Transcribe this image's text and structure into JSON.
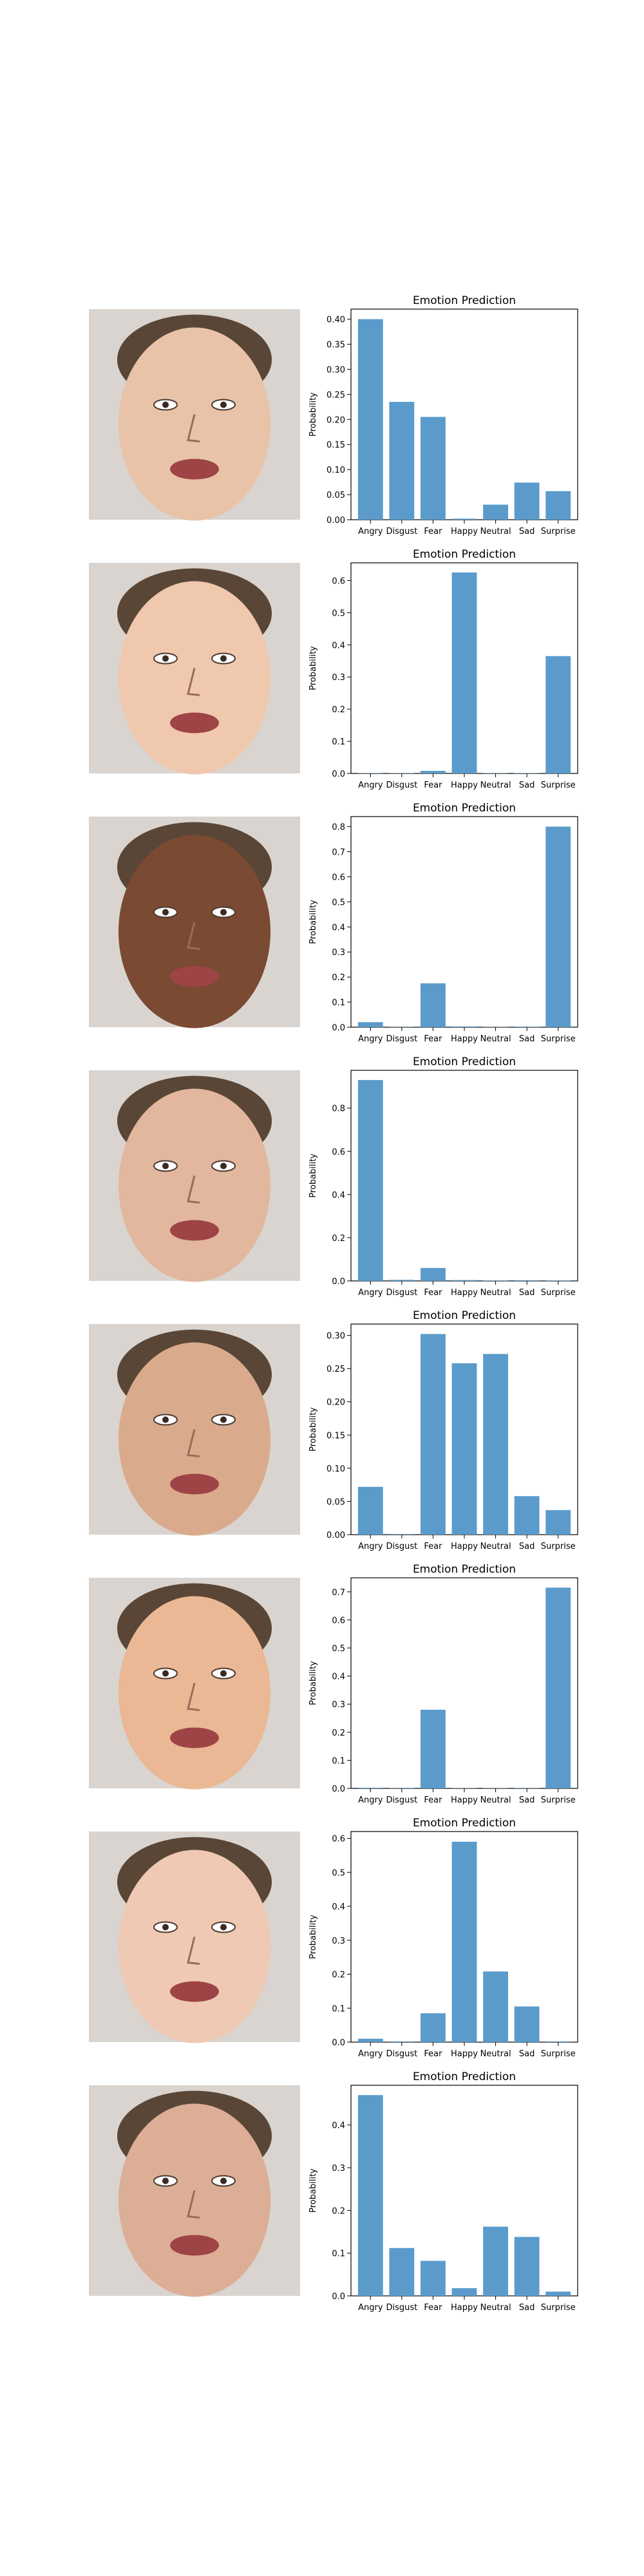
{
  "chart_data": [
    {
      "type": "bar",
      "title": "Emotion Prediction",
      "ylabel": "Probability",
      "categories": [
        "Angry",
        "Disgust",
        "Fear",
        "Happy",
        "Neutral",
        "Sad",
        "Surprise"
      ],
      "values": [
        0.4,
        0.235,
        0.205,
        0.002,
        0.03,
        0.074,
        0.057
      ],
      "ylim": [
        0,
        0.42
      ],
      "yticks": [
        0.0,
        0.05,
        0.1,
        0.15,
        0.2,
        0.25,
        0.3,
        0.35,
        0.4
      ],
      "yticklabels": [
        "0.00",
        "0.05",
        "0.10",
        "0.15",
        "0.20",
        "0.25",
        "0.30",
        "0.35",
        "0.40"
      ],
      "bar_color": "#5b9bcb",
      "face_tone": "#e8c3a8"
    },
    {
      "type": "bar",
      "title": "Emotion Prediction",
      "ylabel": "Probability",
      "categories": [
        "Angry",
        "Disgust",
        "Fear",
        "Happy",
        "Neutral",
        "Sad",
        "Surprise"
      ],
      "values": [
        0.001,
        0.001,
        0.008,
        0.625,
        0.001,
        0.001,
        0.365
      ],
      "ylim": [
        0,
        0.655
      ],
      "yticks": [
        0.0,
        0.1,
        0.2,
        0.3,
        0.4,
        0.5,
        0.6
      ],
      "yticklabels": [
        "0.0",
        "0.1",
        "0.2",
        "0.3",
        "0.4",
        "0.5",
        "0.6"
      ],
      "bar_color": "#5b9bcb",
      "face_tone": "#f0c8ae"
    },
    {
      "type": "bar",
      "title": "Emotion Prediction",
      "ylabel": "Probability",
      "categories": [
        "Angry",
        "Disgust",
        "Fear",
        "Happy",
        "Neutral",
        "Sad",
        "Surprise"
      ],
      "values": [
        0.02,
        0.001,
        0.175,
        0.003,
        0.001,
        0.002,
        0.8
      ],
      "ylim": [
        0,
        0.84
      ],
      "yticks": [
        0.0,
        0.1,
        0.2,
        0.3,
        0.4,
        0.5,
        0.6,
        0.7,
        0.8
      ],
      "yticklabels": [
        "0.0",
        "0.1",
        "0.2",
        "0.3",
        "0.4",
        "0.5",
        "0.6",
        "0.7",
        "0.8"
      ],
      "bar_color": "#5b9bcb",
      "face_tone": "#7a4a32"
    },
    {
      "type": "bar",
      "title": "Emotion Prediction",
      "ylabel": "Probability",
      "categories": [
        "Angry",
        "Disgust",
        "Fear",
        "Happy",
        "Neutral",
        "Sad",
        "Surprise"
      ],
      "values": [
        0.93,
        0.005,
        0.06,
        0.004,
        0.002,
        0.003,
        0.002
      ],
      "ylim": [
        0,
        0.975
      ],
      "yticks": [
        0.0,
        0.2,
        0.4,
        0.6,
        0.8
      ],
      "yticklabels": [
        "0.0",
        "0.2",
        "0.4",
        "0.6",
        "0.8"
      ],
      "bar_color": "#5b9bcb",
      "face_tone": "#e2b79e"
    },
    {
      "type": "bar",
      "title": "Emotion Prediction",
      "ylabel": "Probability",
      "categories": [
        "Angry",
        "Disgust",
        "Fear",
        "Happy",
        "Neutral",
        "Sad",
        "Surprise"
      ],
      "values": [
        0.072,
        0.001,
        0.302,
        0.258,
        0.272,
        0.058,
        0.037
      ],
      "ylim": [
        0,
        0.317
      ],
      "yticks": [
        0.0,
        0.05,
        0.1,
        0.15,
        0.2,
        0.25,
        0.3
      ],
      "yticklabels": [
        "0.00",
        "0.05",
        "0.10",
        "0.15",
        "0.20",
        "0.25",
        "0.30"
      ],
      "bar_color": "#5b9bcb",
      "face_tone": "#d9ab8c"
    },
    {
      "type": "bar",
      "title": "Emotion Prediction",
      "ylabel": "Probability",
      "categories": [
        "Angry",
        "Disgust",
        "Fear",
        "Happy",
        "Neutral",
        "Sad",
        "Surprise"
      ],
      "values": [
        0.002,
        0.001,
        0.28,
        0.001,
        0.001,
        0.001,
        0.715
      ],
      "ylim": [
        0,
        0.75
      ],
      "yticks": [
        0.0,
        0.1,
        0.2,
        0.3,
        0.4,
        0.5,
        0.6,
        0.7
      ],
      "yticklabels": [
        "0.0",
        "0.1",
        "0.2",
        "0.3",
        "0.4",
        "0.5",
        "0.6",
        "0.7"
      ],
      "bar_color": "#5b9bcb",
      "face_tone": "#eab894"
    },
    {
      "type": "bar",
      "title": "Emotion Prediction",
      "ylabel": "Probability",
      "categories": [
        "Angry",
        "Disgust",
        "Fear",
        "Happy",
        "Neutral",
        "Sad",
        "Surprise"
      ],
      "values": [
        0.01,
        0.002,
        0.085,
        0.59,
        0.208,
        0.105,
        0.002
      ],
      "ylim": [
        0,
        0.62
      ],
      "yticks": [
        0.0,
        0.1,
        0.2,
        0.3,
        0.4,
        0.5,
        0.6
      ],
      "yticklabels": [
        "0.0",
        "0.1",
        "0.2",
        "0.3",
        "0.4",
        "0.5",
        "0.6"
      ],
      "bar_color": "#5b9bcb",
      "face_tone": "#efc9b3"
    },
    {
      "type": "bar",
      "title": "Emotion Prediction",
      "ylabel": "Probability",
      "categories": [
        "Angry",
        "Disgust",
        "Fear",
        "Happy",
        "Neutral",
        "Sad",
        "Surprise"
      ],
      "values": [
        0.47,
        0.112,
        0.082,
        0.018,
        0.162,
        0.138,
        0.01
      ],
      "ylim": [
        0,
        0.493
      ],
      "yticks": [
        0.0,
        0.1,
        0.2,
        0.3,
        0.4
      ],
      "yticklabels": [
        "0.0",
        "0.1",
        "0.2",
        "0.3",
        "0.4"
      ],
      "bar_color": "#5b9bcb",
      "face_tone": "#dcae96"
    }
  ]
}
